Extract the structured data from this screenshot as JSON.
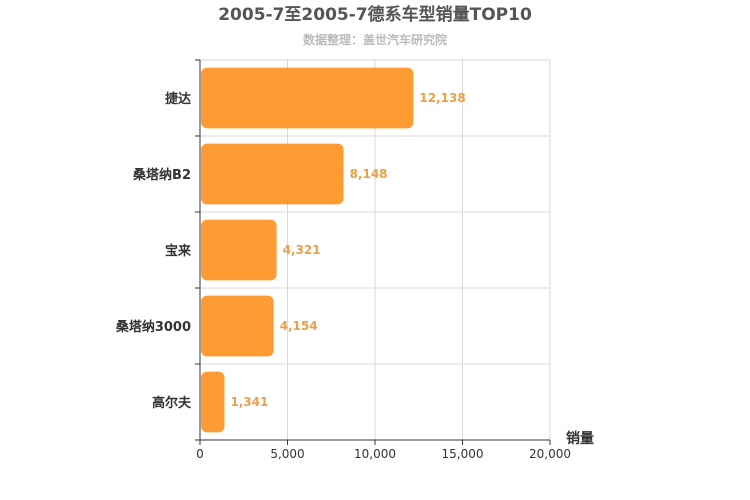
{
  "chart_data": {
    "type": "bar",
    "orientation": "horizontal",
    "title": "2005-7至2005-7德系车型销量TOP10",
    "subtitle": "数据整理：盖世汽车研究院",
    "categories": [
      "捷达",
      "桑塔纳B2",
      "宝来",
      "桑塔纳3000",
      "高尔夫"
    ],
    "values": [
      12138,
      8148,
      4321,
      4154,
      1341
    ],
    "value_labels": [
      "12,138",
      "8,148",
      "4,321",
      "4,154",
      "1,341"
    ],
    "xlabel": "销量",
    "ylabel": "",
    "xlim": [
      0,
      20000
    ],
    "xticks": [
      0,
      5000,
      10000,
      15000,
      20000
    ],
    "xtick_labels": [
      "0",
      "5,000",
      "10,000",
      "15,000",
      "20,000"
    ],
    "grid": true,
    "bar_color": "#ff9b33",
    "grid_color": "#d8d8d8"
  }
}
